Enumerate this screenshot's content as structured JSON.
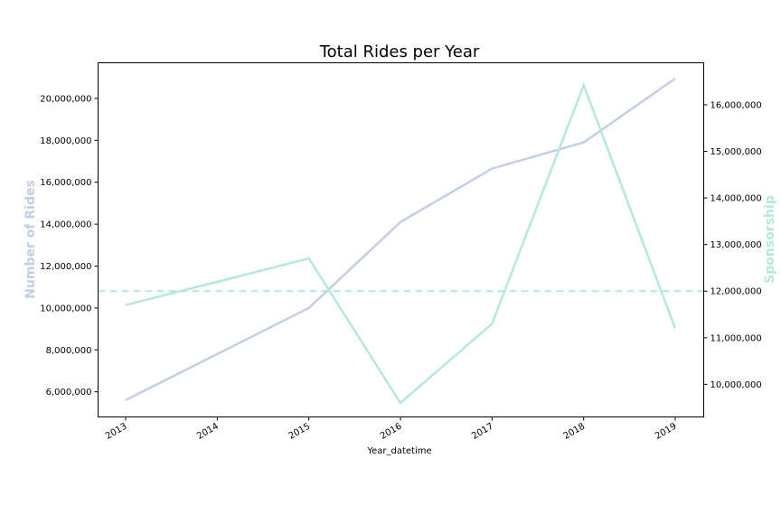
{
  "chart_data": {
    "type": "line",
    "title": "Total Rides per Year",
    "xlabel": "Year_datetime",
    "x": [
      "2013",
      "2014",
      "2015",
      "2016",
      "2017",
      "2018",
      "2019"
    ],
    "y_left": {
      "label": "Number of Rides",
      "ylim": [
        4800000,
        21700000
      ],
      "ticks": [
        6000000,
        8000000,
        10000000,
        12000000,
        14000000,
        16000000,
        18000000,
        20000000
      ],
      "tick_labels": [
        "6,000,000",
        "8,000,000",
        "10,000,000",
        "12,000,000",
        "14,000,000",
        "16,000,000",
        "18,000,000",
        "20,000,000"
      ]
    },
    "y_right": {
      "label": "Sponsorship",
      "ylim": [
        9300000,
        16900000
      ],
      "ticks": [
        10000000,
        11000000,
        12000000,
        13000000,
        14000000,
        15000000,
        16000000
      ],
      "tick_labels": [
        "10,000,000",
        "11,000,000",
        "12,000,000",
        "13,000,000",
        "14,000,000",
        "15,000,000",
        "16,000,000"
      ]
    },
    "series": [
      {
        "axis": "left",
        "color": "#c4cde6",
        "x": [
          2013,
          2015,
          2016,
          2017,
          2018,
          2019
        ],
        "values": [
          5600000,
          10000000,
          14100000,
          16650000,
          17900000,
          20950000
        ]
      },
      {
        "axis": "right",
        "color": "#b5e9d7",
        "x": [
          2013,
          2015,
          2016,
          2017,
          2018,
          2019
        ],
        "values": [
          11700000,
          12700000,
          9600000,
          11300000,
          16420000,
          11200000
        ]
      }
    ],
    "reference_line": {
      "axis": "right",
      "value": 12000000,
      "style": "dashed",
      "color": "#b5e9d7"
    },
    "grid": false,
    "colors": {
      "left_label": "#c4cde6",
      "right_label": "#b5e9d7"
    }
  }
}
